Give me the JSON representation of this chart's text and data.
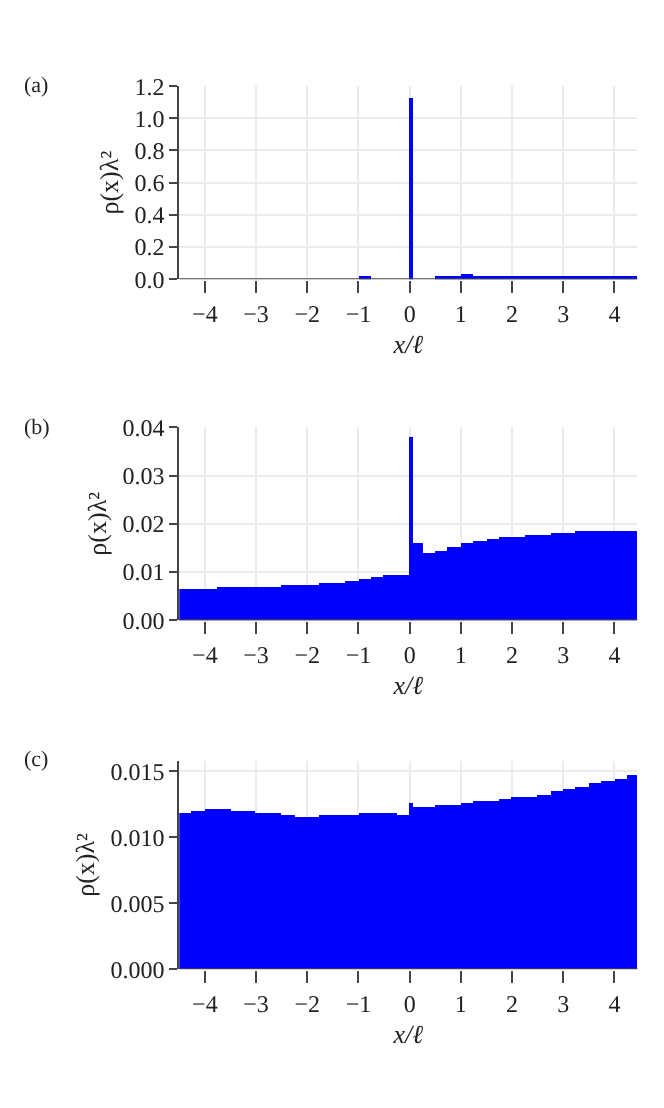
{
  "chart_data": [
    {
      "type": "histogram",
      "title": "(a)",
      "xlabel": "x/ℓ",
      "ylabel": "ρ(x)λ²",
      "color": "#0000ff",
      "grid": true,
      "bins": [
        -1,
        -0.75,
        0,
        0.05,
        0.5,
        0.75,
        1,
        1.25,
        1.5,
        1.75,
        2,
        2.25,
        2.5,
        2.75,
        3,
        3.25,
        3.5,
        3.75,
        4,
        4.25,
        4.45
      ],
      "values": [
        0.01,
        0,
        1.12,
        0,
        0.02,
        0.02,
        0.03,
        0.02,
        0.02,
        0.02,
        0.02,
        0.02,
        0.02,
        0.02,
        0.02,
        0.02,
        0.02,
        0.02,
        0.02,
        0.02
      ],
      "xlim": [
        -4.5,
        4.45
      ],
      "xticks": [
        {
          "value": -4,
          "label": "−4"
        },
        {
          "value": -3,
          "label": "−3"
        },
        {
          "value": -2,
          "label": "−2"
        },
        {
          "value": -1,
          "label": "−1"
        },
        0,
        1,
        2,
        3,
        4
      ],
      "ylim": [
        0,
        1.2
      ],
      "yticks": [
        {
          "value": 0,
          "label": "0.0"
        },
        0.2,
        0.4,
        0.6,
        0.8,
        {
          "value": 1,
          "label": "1.0"
        },
        1.2
      ]
    },
    {
      "type": "histogram",
      "title": "(b)",
      "xlabel": "x/ℓ",
      "ylabel": "ρ(x)λ²",
      "color": "#0000ff",
      "grid": true,
      "bins": [
        -4.5,
        -4.25,
        -4,
        -3.75,
        -3.5,
        -3.25,
        -3,
        -2.75,
        -2.5,
        -2.25,
        -2,
        -1.75,
        -1.5,
        -1.25,
        -1,
        -0.75,
        -0.5,
        -0.25,
        0,
        0.05,
        0.25,
        0.5,
        0.75,
        1,
        1.25,
        1.5,
        1.75,
        2,
        2.25,
        2.5,
        2.75,
        3,
        3.25,
        3.5,
        3.75,
        4,
        4.25,
        4.45
      ],
      "values": [
        0.0065,
        0.0066,
        0.0066,
        0.0067,
        0.0068,
        0.0068,
        0.0069,
        0.007,
        0.0071,
        0.0072,
        0.0074,
        0.0076,
        0.0078,
        0.008,
        0.0083,
        0.009,
        0.0095,
        0.0095,
        0.038,
        0.016,
        0.014,
        0.0145,
        0.0152,
        0.0158,
        0.0162,
        0.0166,
        0.017,
        0.0173,
        0.0176,
        0.0178,
        0.018,
        0.0182,
        0.0183,
        0.0184,
        0.0185,
        0.0186,
        0.0186
      ],
      "xlim": [
        -4.5,
        4.45
      ],
      "xticks": [
        {
          "value": -4,
          "label": "−4"
        },
        {
          "value": -3,
          "label": "−3"
        },
        {
          "value": -2,
          "label": "−2"
        },
        {
          "value": -1,
          "label": "−1"
        },
        0,
        1,
        2,
        3,
        4
      ],
      "ylim": [
        0,
        0.04
      ],
      "yticks": [
        {
          "value": 0,
          "label": "0.00"
        },
        0.01,
        0.02,
        0.03,
        0.04
      ]
    },
    {
      "type": "histogram",
      "title": "(c)",
      "xlabel": "x/ℓ",
      "ylabel": "ρ(x)λ²",
      "color": "#0000ff",
      "grid": true,
      "bins": [
        -4.5,
        -4.25,
        -4,
        -3.75,
        -3.5,
        -3.25,
        -3,
        -2.75,
        -2.5,
        -2.25,
        -2,
        -1.75,
        -1.5,
        -1.25,
        -1,
        -0.75,
        -0.5,
        -0.25,
        0,
        0.05,
        0.25,
        0.5,
        0.75,
        1,
        1.25,
        1.5,
        1.75,
        2,
        2.25,
        2.5,
        2.75,
        3,
        3.25,
        3.5,
        3.75,
        4,
        4.25,
        4.45
      ],
      "values": [
        0.0119,
        0.012,
        0.0121,
        0.0121,
        0.012,
        0.012,
        0.0119,
        0.0118,
        0.0117,
        0.0116,
        0.0116,
        0.0117,
        0.0117,
        0.0117,
        0.0118,
        0.0118,
        0.0118,
        0.0117,
        0.0126,
        0.0123,
        0.0123,
        0.0124,
        0.0125,
        0.0126,
        0.0127,
        0.0128,
        0.0129,
        0.013,
        0.0131,
        0.0133,
        0.0135,
        0.0137,
        0.0139,
        0.0141,
        0.0143,
        0.0145,
        0.0148
      ],
      "xlim": [
        -4.5,
        4.45
      ],
      "xticks": [
        {
          "value": -4,
          "label": "−4"
        },
        {
          "value": -3,
          "label": "−3"
        },
        {
          "value": -2,
          "label": "−2"
        },
        {
          "value": -1,
          "label": "−1"
        },
        0,
        1,
        2,
        3,
        4
      ],
      "ylim": [
        0,
        0.0158
      ],
      "yticks": [
        {
          "value": 0,
          "label": "0.000"
        },
        0.005,
        {
          "value": 0.01,
          "label": "0.010"
        },
        0.015
      ]
    }
  ]
}
